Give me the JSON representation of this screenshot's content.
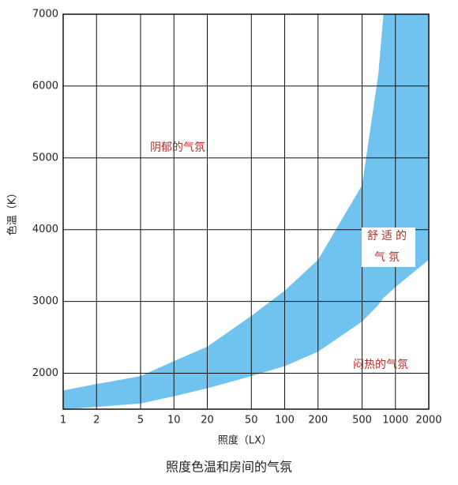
{
  "chart_data": {
    "type": "band",
    "caption": "照度色温和房间的气氛",
    "x_label": "照度（LX）",
    "y_label": "色温（K）",
    "annotations": {
      "gloomy": "阴郁的气氛",
      "comfortable": [
        "舒适的",
        "气氛"
      ],
      "stuffy": "闷热的气氛"
    },
    "x": [
      1,
      2,
      5,
      10,
      20,
      50,
      100,
      200,
      500,
      700,
      780,
      1000,
      2000
    ],
    "upper": [
      1760,
      1850,
      1960,
      2170,
      2370,
      2800,
      3150,
      3580,
      4620,
      6160,
      7000,
      7000,
      7000
    ],
    "lower": [
      1500,
      1530,
      1580,
      1680,
      1790,
      1960,
      2100,
      2300,
      2720,
      2950,
      3050,
      3200,
      3580
    ],
    "color": "#6fc3ee",
    "xscale": "log",
    "xlim": [
      1,
      2000
    ],
    "xticks": [
      1,
      2,
      5,
      10,
      20,
      50,
      100,
      200,
      500,
      1000,
      2000
    ],
    "ylim": [
      1500,
      7000
    ],
    "yticks": [
      2000,
      3000,
      4000,
      5000,
      6000,
      7000
    ],
    "grid": true
  }
}
